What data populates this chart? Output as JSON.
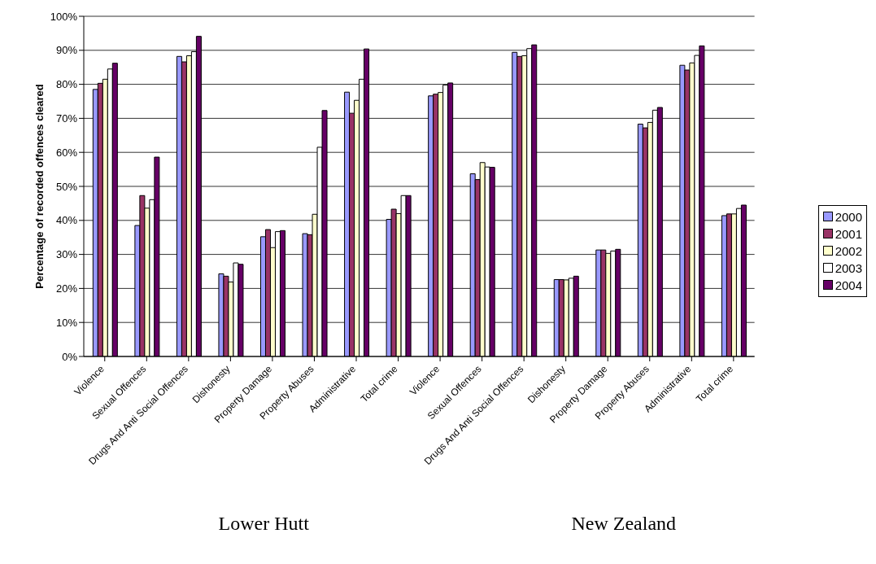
{
  "chart_data": {
    "type": "bar",
    "ylabel": "Percentage of recorded offences cleared",
    "categories": [
      "Violence",
      "Sexual Offences",
      "Drugs And Anti Social Offences",
      "Dishonesty",
      "Property Damage",
      "Property Abuses",
      "Administrative",
      "Total crime",
      "Violence",
      "Sexual Offences",
      "Drugs And Anti Social Offences",
      "Dishonesty",
      "Property Damage",
      "Property Abuses",
      "Administrative",
      "Total crime"
    ],
    "series": [
      {
        "name": "2000",
        "color": "#9999ff",
        "values": [
          78.5,
          38.5,
          88.2,
          24.3,
          35.2,
          36.1,
          77.7,
          40.3,
          76.6,
          53.7,
          89.4,
          22.6,
          31.3,
          68.3,
          85.6,
          41.4
        ]
      },
      {
        "name": "2001",
        "color": "#993366",
        "values": [
          80.3,
          47.3,
          86.6,
          23.6,
          37.3,
          35.8,
          71.5,
          43.3,
          77.1,
          52.0,
          88.2,
          22.6,
          31.3,
          67.2,
          84.2,
          41.9
        ]
      },
      {
        "name": "2002",
        "color": "#ffffcc",
        "values": [
          81.5,
          43.6,
          88.4,
          21.9,
          32.0,
          41.8,
          75.3,
          42.0,
          77.6,
          57.0,
          88.4,
          22.5,
          30.3,
          68.8,
          86.3,
          41.9
        ]
      },
      {
        "name": "2003",
        "color": "#ffffff",
        "values": [
          84.5,
          46.1,
          89.6,
          27.5,
          36.7,
          61.5,
          81.5,
          47.3,
          79.8,
          55.7,
          90.5,
          23.0,
          31.0,
          72.4,
          88.5,
          43.5
        ]
      },
      {
        "name": "2004",
        "color": "#660066",
        "values": [
          86.2,
          58.6,
          94.1,
          27.1,
          37.0,
          72.3,
          90.4,
          47.3,
          80.4,
          55.6,
          91.6,
          23.6,
          31.5,
          73.2,
          91.3,
          44.5
        ]
      }
    ],
    "ylim": [
      0,
      100
    ],
    "yticks": [
      {
        "value": 0,
        "label": "0%"
      },
      {
        "value": 10,
        "label": "10%"
      },
      {
        "value": 20,
        "label": "20%"
      },
      {
        "value": 30,
        "label": "30%"
      },
      {
        "value": 40,
        "label": "40%"
      },
      {
        "value": 50,
        "label": "50%"
      },
      {
        "value": 60,
        "label": "60%"
      },
      {
        "value": 70,
        "label": "70%"
      },
      {
        "value": 80,
        "label": "80%"
      },
      {
        "value": 90,
        "label": "90%"
      },
      {
        "value": 100,
        "label": "100%"
      }
    ],
    "grid": "y",
    "legend": "right",
    "annotations": [
      "Lower Hutt",
      "New Zealand"
    ]
  }
}
